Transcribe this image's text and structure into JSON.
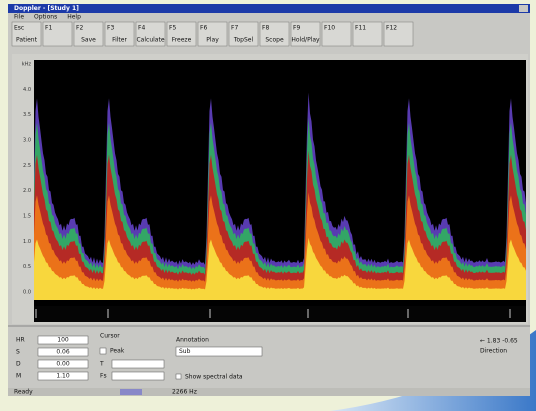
{
  "window": {
    "title": "Doppler - [Study 1]"
  },
  "menu": [
    "File",
    "Options",
    "Help"
  ],
  "toolbar": [
    {
      "key": "Esc",
      "label": "Patient"
    },
    {
      "key": "F1",
      "label": ""
    },
    {
      "key": "F2",
      "label": "Save"
    },
    {
      "key": "F3",
      "label": "Filter"
    },
    {
      "key": "F4",
      "label": "Calculate"
    },
    {
      "key": "F5",
      "label": "Freeze"
    },
    {
      "key": "F6",
      "label": "Play"
    },
    {
      "key": "F7",
      "label": "TopSel"
    },
    {
      "key": "F8",
      "label": "Scope"
    },
    {
      "key": "F9",
      "label": "Hold/Play"
    },
    {
      "key": "F10",
      "label": ""
    },
    {
      "key": "F11",
      "label": ""
    },
    {
      "key": "F12",
      "label": ""
    }
  ],
  "spectrum": {
    "axis_labels": [
      "kHz",
      "4.0",
      "3.5",
      "3.0",
      "2.5",
      "2.0",
      "1.5",
      "1.0",
      "0.5",
      "0.0"
    ]
  },
  "panel": {
    "fields": [
      {
        "label": "HR",
        "value": "100"
      },
      {
        "label": "S",
        "value": "0.06"
      },
      {
        "label": "D",
        "value": "0.00"
      },
      {
        "label": "M",
        "value": "1.10"
      }
    ],
    "cursor": {
      "title": "Cursor",
      "peak": "Peak",
      "t": "T",
      "fs": "Fs"
    },
    "annotation": {
      "title": "Annotation",
      "value": "Sub"
    },
    "show_spectral": "Show spectral data",
    "direction": {
      "values": "← 1.83  -0.65",
      "title": "Direction"
    }
  },
  "status": {
    "left": "Ready",
    "middle": "2266 Hz"
  }
}
